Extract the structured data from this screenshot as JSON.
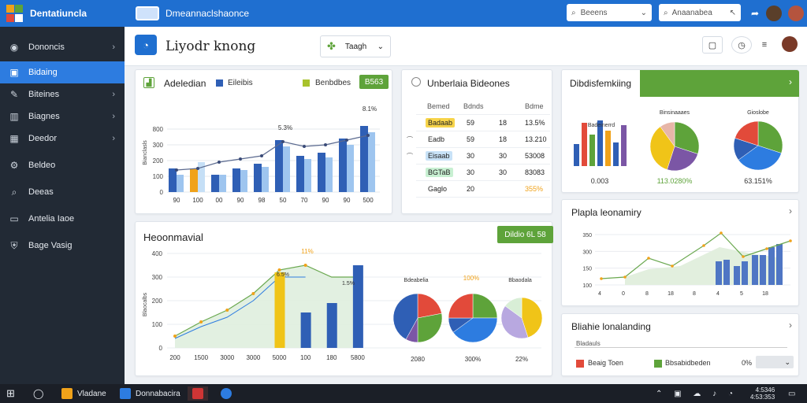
{
  "app": {
    "title": "Dentatiuncla",
    "doc_title": "Dmeannaclshaonce"
  },
  "top": {
    "search1": "Beeens",
    "search2": "Anaanabea",
    "brand_colors": {
      "primary": "#1f6fd0",
      "green": "#5ea33a",
      "orange": "#f0a21a",
      "sidebar": "#222a35"
    }
  },
  "sidebar": {
    "items": [
      {
        "label": "Dononcis",
        "icon": "globe-icon",
        "chevron": "›"
      },
      {
        "label": "Bidaing",
        "icon": "card-icon",
        "chevron": ""
      },
      {
        "label": "Biteines",
        "icon": "pen-icon",
        "chevron": "›"
      },
      {
        "label": "Biagnes",
        "icon": "book-icon",
        "chevron": "›"
      },
      {
        "label": "Deedor",
        "icon": "calendar-icon",
        "chevron": "›"
      },
      {
        "label": "Beldeo",
        "icon": "settings-icon",
        "chevron": ""
      },
      {
        "label": "Deeas",
        "icon": "search-icon",
        "chevron": ""
      },
      {
        "label": "Antelia Iaoe",
        "icon": "image-icon",
        "chevron": ""
      },
      {
        "label": "Bage Vasig",
        "icon": "shield-icon",
        "chevron": ""
      }
    ]
  },
  "header": {
    "title": "Liyodr knong",
    "dropdown": "Taagh",
    "dropdown_arrow": "⌄"
  },
  "card1": {
    "title": "Adeledian",
    "legend1": "Eileibis",
    "legend2": "Benbdbes",
    "button": "B563",
    "ylabel": "Bianclasls"
  },
  "card2": {
    "title": "Unberlaia Bideones",
    "headers": [
      "Bemed",
      "Bdnds",
      "Bdme"
    ],
    "rows": [
      {
        "name": "Badaab",
        "col2": "59",
        "col3": "18",
        "col4": "13.5%",
        "pill": "#f7d44a"
      },
      {
        "name": "Eadb",
        "col2": "59",
        "col3": "18",
        "col4": "13.210",
        "pill": ""
      },
      {
        "name": "Eisaab",
        "col2": "30",
        "col3": "30",
        "col4": "53008",
        "pill": "#c8e2f7"
      },
      {
        "name": "BGTaB",
        "col2": "30",
        "col3": "30",
        "col4": "83083",
        "pill": "#c8f0d2"
      },
      {
        "name": "Gaglo",
        "col2": "20",
        "col3": "",
        "col4": "355%",
        "pill": ""
      }
    ]
  },
  "card3": {
    "title": "Dibdisfemkiing",
    "pie_titles": [
      "Badeinerrd",
      "Binsinaaaes",
      "Gioslobe"
    ],
    "pie_values": [
      "0.003",
      "113.0280%",
      "63.151%"
    ]
  },
  "card4": {
    "title": "Heoonmavial",
    "button": "Dildio 6L 58",
    "ylabel": "Blaocalbs",
    "pie_titles": [
      "Bdeabelia",
      "100%",
      "Bbaodala"
    ],
    "pie_values": [
      "2080",
      "300%",
      "22%"
    ]
  },
  "card5": {
    "title": "Plapla leonamiry"
  },
  "card6": {
    "title": "Bliahie lonalanding",
    "subtitle": "Bladauls",
    "legend1": "Beaig Toen",
    "legend2": "Bbsabidbeden",
    "pct": "0%"
  },
  "taskbar": {
    "items": [
      "Vladane",
      "Donnabacira"
    ],
    "time": "4:5346",
    "date": "4:53:353"
  },
  "chart_data": [
    {
      "type": "bar",
      "title": "Adeledian",
      "categories": [
        "90",
        "100",
        "00",
        "90",
        "98",
        "50",
        "70",
        "90",
        "90",
        "500"
      ],
      "series": [
        {
          "name": "Eileibis",
          "values": [
            150,
            150,
            110,
            150,
            180,
            330,
            230,
            250,
            340,
            420
          ]
        },
        {
          "name": "Benbdbes",
          "values": [
            110,
            190,
            110,
            140,
            160,
            290,
            210,
            220,
            300,
            380
          ]
        }
      ],
      "line": [
        140,
        150,
        190,
        210,
        230,
        320,
        290,
        300,
        330,
        360
      ],
      "ylim": [
        0,
        500
      ]
    },
    {
      "type": "bar",
      "title": "Heoonmavial",
      "categories": [
        "200",
        "1500",
        "3000",
        "3000",
        "5000",
        "100",
        "180",
        "5800"
      ],
      "values": [
        0,
        0,
        0,
        0,
        320,
        150,
        190,
        350
      ],
      "area": [
        50,
        110,
        160,
        230,
        330,
        350,
        300,
        300
      ],
      "ylim": [
        0,
        400
      ]
    }
  ]
}
